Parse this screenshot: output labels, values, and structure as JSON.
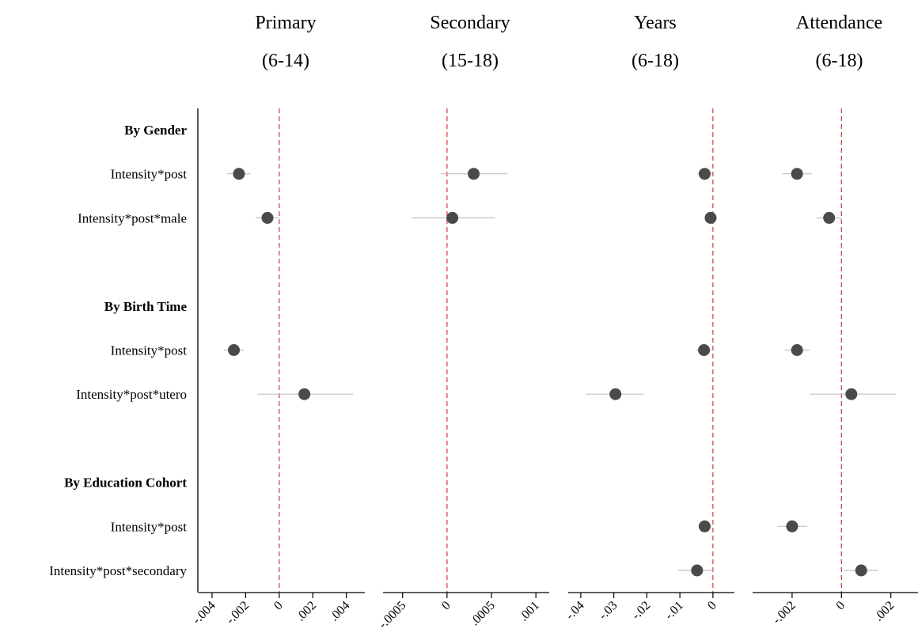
{
  "chart_data": {
    "type": "scatter",
    "rows": [
      {
        "label": "By Gender",
        "section": true
      },
      {
        "label": "Intensity*post"
      },
      {
        "label": "Intensity*post*male"
      },
      {
        "label": "",
        "spacer": true
      },
      {
        "label": "By Birth Time",
        "section": true
      },
      {
        "label": "Intensity*post"
      },
      {
        "label": "Intensity*post*utero"
      },
      {
        "label": "",
        "spacer": true
      },
      {
        "label": "By Education Cohort",
        "section": true
      },
      {
        "label": "Intensity*post"
      },
      {
        "label": "Intensity*post*secondary"
      }
    ],
    "panels": [
      {
        "title": "Primary",
        "subtitle": "(6-14)",
        "xlim": [
          -0.0048,
          0.0051
        ],
        "ticks": [
          -0.004,
          -0.002,
          0,
          0.002,
          0.004
        ],
        "tick_labels": [
          "-.004",
          "-.002",
          "0",
          ".002",
          ".004"
        ],
        "points": [
          {
            "row": 1,
            "est": -0.0024,
            "lo": -0.0031,
            "hi": -0.0017
          },
          {
            "row": 2,
            "est": -0.0007,
            "lo": -0.0014,
            "hi": 0.0
          },
          {
            "row": 5,
            "est": -0.0027,
            "lo": -0.0033,
            "hi": -0.0021
          },
          {
            "row": 6,
            "est": 0.0015,
            "lo": -0.0013,
            "hi": 0.0044
          }
        ]
      },
      {
        "title": "Secondary",
        "subtitle": "(15-18)",
        "xlim": [
          -0.00072,
          0.00115
        ],
        "ticks": [
          -0.0005,
          0,
          0.0005,
          0.001
        ],
        "tick_labels": [
          "-.0005",
          "0",
          ".0005",
          ".001"
        ],
        "points": [
          {
            "row": 1,
            "est": 0.0003,
            "lo": -7e-05,
            "hi": 0.00068
          },
          {
            "row": 2,
            "est": 6e-05,
            "lo": -0.0004,
            "hi": 0.00054
          }
        ]
      },
      {
        "title": "Years",
        "subtitle": "(6-18)",
        "xlim": [
          -0.0438,
          0.0065
        ],
        "ticks": [
          -0.04,
          -0.03,
          -0.02,
          -0.01,
          0
        ],
        "tick_labels": [
          "-.04",
          "-.03",
          "-.02",
          "-.01",
          "0"
        ],
        "points": [
          {
            "row": 1,
            "est": -0.0025,
            "lo": -0.0048,
            "hi": -0.0002
          },
          {
            "row": 2,
            "est": -0.0007,
            "lo": -0.0025,
            "hi": 0.0013
          },
          {
            "row": 5,
            "est": -0.0027,
            "lo": -0.005,
            "hi": -0.0004
          },
          {
            "row": 6,
            "est": -0.0295,
            "lo": -0.0385,
            "hi": -0.021
          },
          {
            "row": 9,
            "est": -0.0025,
            "lo": -0.0045,
            "hi": -0.0005
          },
          {
            "row": 10,
            "est": -0.0048,
            "lo": -0.0105,
            "hi": 0.0
          }
        ]
      },
      {
        "title": "Attendance",
        "subtitle": "(6-18)",
        "xlim": [
          -0.0036,
          0.0031
        ],
        "ticks": [
          -0.002,
          0,
          0.002
        ],
        "tick_labels": [
          "-.002",
          "0",
          ".002"
        ],
        "points": [
          {
            "row": 1,
            "est": -0.0018,
            "lo": -0.0024,
            "hi": -0.0012
          },
          {
            "row": 2,
            "est": -0.0005,
            "lo": -0.001,
            "hi": 0.0
          },
          {
            "row": 5,
            "est": -0.0018,
            "lo": -0.0023,
            "hi": -0.0013
          },
          {
            "row": 6,
            "est": 0.0004,
            "lo": -0.0013,
            "hi": 0.0022
          },
          {
            "row": 9,
            "est": -0.002,
            "lo": -0.0026,
            "hi": -0.0014
          },
          {
            "row": 10,
            "est": 0.0008,
            "lo": 0.0001,
            "hi": 0.0015
          }
        ]
      }
    ],
    "reference_line": 0,
    "colors": {
      "marker": "#4a4a4a",
      "ci": "#c0c0c0",
      "reference": "#e04040",
      "axis": "#000000"
    }
  }
}
